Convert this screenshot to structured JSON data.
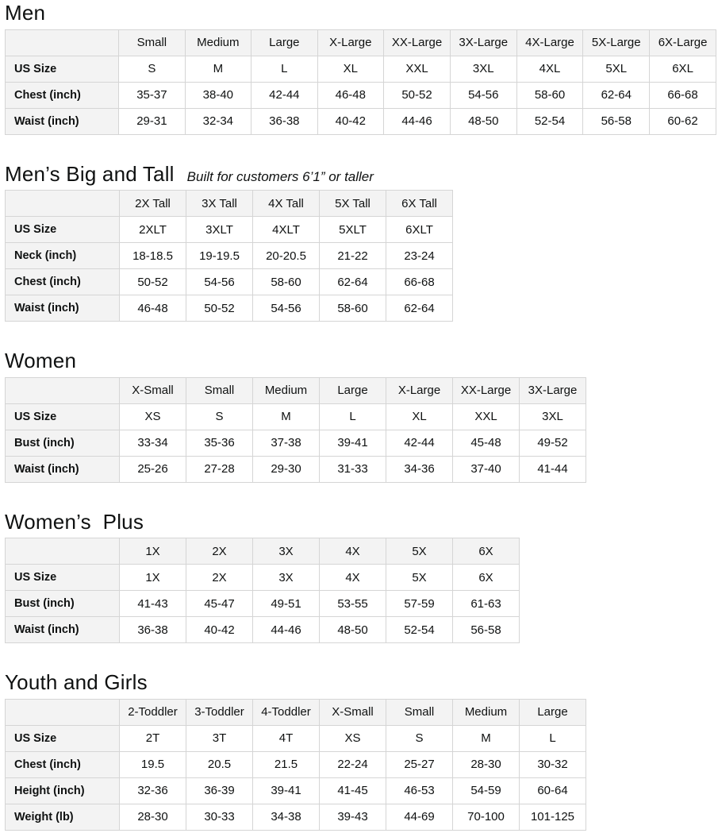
{
  "colors": {
    "header_bg": "#f3f3f3",
    "border": "#d5d5d5",
    "text": "#0f1111",
    "page_bg": "#ffffff"
  },
  "sections": [
    {
      "title": "Men",
      "subtitle": "",
      "table": {
        "column_headers": [
          "",
          "Small",
          "Medium",
          "Large",
          "X-Large",
          "XX-Large",
          "3X-Large",
          "4X-Large",
          "5X-Large",
          "6X-Large"
        ],
        "rows": [
          {
            "label": "US Size",
            "values": [
              "S",
              "M",
              "L",
              "XL",
              "XXL",
              "3XL",
              "4XL",
              "5XL",
              "6XL"
            ]
          },
          {
            "label": "Chest (inch)",
            "values": [
              "35-37",
              "38-40",
              "42-44",
              "46-48",
              "50-52",
              "54-56",
              "58-60",
              "62-64",
              "66-68"
            ]
          },
          {
            "label": "Waist (inch)",
            "values": [
              "29-31",
              "32-34",
              "36-38",
              "40-42",
              "44-46",
              "48-50",
              "52-54",
              "56-58",
              "60-62"
            ]
          }
        ]
      }
    },
    {
      "title": "Men’s Big and Tall",
      "subtitle": "Built for customers 6’1” or taller",
      "table": {
        "column_headers": [
          "",
          "2X Tall",
          "3X Tall",
          "4X Tall",
          "5X Tall",
          "6X Tall"
        ],
        "rows": [
          {
            "label": "US Size",
            "values": [
              "2XLT",
              "3XLT",
              "4XLT",
              "5XLT",
              "6XLT"
            ]
          },
          {
            "label": "Neck (inch)",
            "values": [
              "18-18.5",
              "19-19.5",
              "20-20.5",
              "21-22",
              "23-24"
            ]
          },
          {
            "label": "Chest (inch)",
            "values": [
              "50-52",
              "54-56",
              "58-60",
              "62-64",
              "66-68"
            ]
          },
          {
            "label": "Waist (inch)",
            "values": [
              "46-48",
              "50-52",
              "54-56",
              "58-60",
              "62-64"
            ]
          }
        ]
      }
    },
    {
      "title": "Women",
      "subtitle": "",
      "table": {
        "column_headers": [
          "",
          "X-Small",
          "Small",
          "Medium",
          "Large",
          "X-Large",
          "XX-Large",
          "3X-Large"
        ],
        "rows": [
          {
            "label": "US Size",
            "values": [
              "XS",
              "S",
              "M",
              "L",
              "XL",
              "XXL",
              "3XL"
            ]
          },
          {
            "label": "Bust (inch)",
            "values": [
              "33-34",
              "35-36",
              "37-38",
              "39-41",
              "42-44",
              "45-48",
              "49-52"
            ]
          },
          {
            "label": "Waist (inch)",
            "values": [
              "25-26",
              "27-28",
              "29-30",
              "31-33",
              "34-36",
              "37-40",
              "41-44"
            ]
          }
        ]
      }
    },
    {
      "title": "Women’s  Plus",
      "subtitle": "",
      "table": {
        "column_headers": [
          "",
          "1X",
          "2X",
          "3X",
          "4X",
          "5X",
          "6X"
        ],
        "rows": [
          {
            "label": "US Size",
            "values": [
              "1X",
              "2X",
              "3X",
              "4X",
              "5X",
              "6X"
            ]
          },
          {
            "label": "Bust (inch)",
            "values": [
              "41-43",
              "45-47",
              "49-51",
              "53-55",
              "57-59",
              "61-63"
            ]
          },
          {
            "label": "Waist (inch)",
            "values": [
              "36-38",
              "40-42",
              "44-46",
              "48-50",
              "52-54",
              "56-58"
            ]
          }
        ]
      }
    },
    {
      "title": "Youth and Girls",
      "subtitle": "",
      "table": {
        "column_headers": [
          "",
          "2-Toddler",
          "3-Toddler",
          "4-Toddler",
          "X-Small",
          "Small",
          "Medium",
          "Large"
        ],
        "rows": [
          {
            "label": "US Size",
            "values": [
              "2T",
              "3T",
              "4T",
              "XS",
              "S",
              "M",
              "L"
            ]
          },
          {
            "label": "Chest (inch)",
            "values": [
              "19.5",
              "20.5",
              "21.5",
              "22-24",
              "25-27",
              "28-30",
              "30-32"
            ]
          },
          {
            "label": "Height (inch)",
            "values": [
              "32-36",
              "36-39",
              "39-41",
              "41-45",
              "46-53",
              "54-59",
              "60-64"
            ]
          },
          {
            "label": "Weight (lb)",
            "values": [
              "28-30",
              "30-33",
              "34-38",
              "39-43",
              "44-69",
              "70-100",
              "101-125"
            ]
          }
        ]
      }
    }
  ]
}
